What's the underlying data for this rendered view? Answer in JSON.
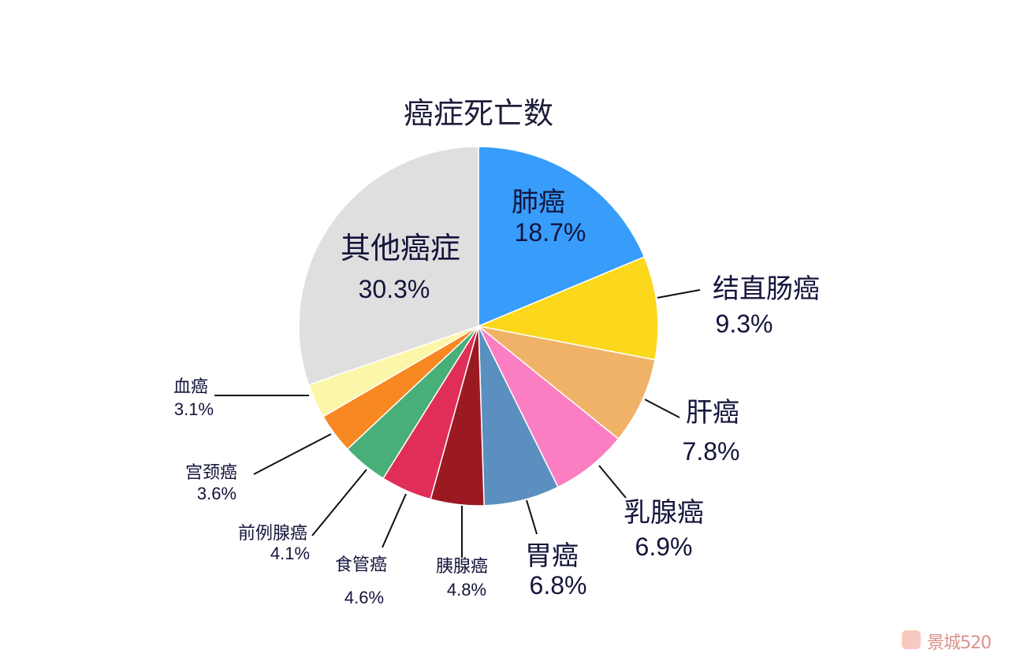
{
  "chart_data": {
    "type": "pie",
    "title": "癌症死亡数",
    "start": "12 o'clock",
    "direction": "clockwise",
    "slices": [
      {
        "label": "肺癌",
        "value": 18.7,
        "value_label": "18.7%",
        "color": "#379cfa"
      },
      {
        "label": "结直肠癌",
        "value": 9.3,
        "value_label": "9.3%",
        "color": "#fcd81c"
      },
      {
        "label": "肝癌",
        "value": 7.8,
        "value_label": "7.8%",
        "color": "#f0b267"
      },
      {
        "label": "乳腺癌",
        "value": 6.9,
        "value_label": "6.9%",
        "color": "#fb7ec2"
      },
      {
        "label": "胃癌",
        "value": 6.8,
        "value_label": "6.8%",
        "color": "#5a8fc0"
      },
      {
        "label": "胰腺癌",
        "value": 4.8,
        "value_label": "4.8%",
        "color": "#9b1a22"
      },
      {
        "label": "食管癌",
        "value": 4.6,
        "value_label": "4.6%",
        "color": "#e02e58"
      },
      {
        "label": "前例腺癌",
        "value": 4.1,
        "value_label": "4.1%",
        "color": "#49af79"
      },
      {
        "label": "宫颈癌",
        "value": 3.6,
        "value_label": "3.6%",
        "color": "#f88822"
      },
      {
        "label": "血癌",
        "value": 3.1,
        "value_label": "3.1%",
        "color": "#fcf7a8"
      },
      {
        "label": "其他癌症",
        "value": 30.3,
        "value_label": "30.3%",
        "color": "#dfdfdf"
      }
    ]
  },
  "watermark": {
    "text": "景城520"
  }
}
